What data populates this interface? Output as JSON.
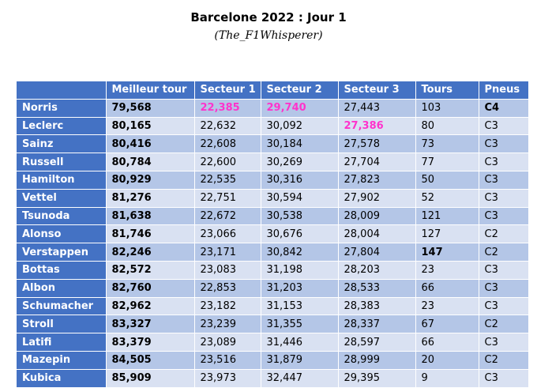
{
  "title": "Barcelone 2022 : Jour 1",
  "subtitle": "(The_F1Whisperer)",
  "headers": [
    "",
    "Meilleur tour",
    "Secteur 1",
    "Secteur 2",
    "Secteur 3",
    "Tours",
    "Pneus"
  ],
  "colors": {
    "header_blue": "#4472c4",
    "row_light": "#d9e1f2",
    "row_mid": "#b4c6e7",
    "highlight_pink": "#ff33cc"
  },
  "rows": [
    {
      "driver": "Norris",
      "best": "79,568",
      "s1": "22,385",
      "s2": "29,740",
      "s3": "27,443",
      "laps": "103",
      "tyre": "C4"
    },
    {
      "driver": "Leclerc",
      "best": "80,165",
      "s1": "22,632",
      "s2": "30,092",
      "s3": "27,386",
      "laps": "80",
      "tyre": "C3"
    },
    {
      "driver": "Sainz",
      "best": "80,416",
      "s1": "22,608",
      "s2": "30,184",
      "s3": "27,578",
      "laps": "73",
      "tyre": "C3"
    },
    {
      "driver": "Russell",
      "best": "80,784",
      "s1": "22,600",
      "s2": "30,269",
      "s3": "27,704",
      "laps": "77",
      "tyre": "C3"
    },
    {
      "driver": "Hamilton",
      "best": "80,929",
      "s1": "22,535",
      "s2": "30,316",
      "s3": "27,823",
      "laps": "50",
      "tyre": "C3"
    },
    {
      "driver": "Vettel",
      "best": "81,276",
      "s1": "22,751",
      "s2": "30,594",
      "s3": "27,902",
      "laps": "52",
      "tyre": "C3"
    },
    {
      "driver": "Tsunoda",
      "best": "81,638",
      "s1": "22,672",
      "s2": "30,538",
      "s3": "28,009",
      "laps": "121",
      "tyre": "C3"
    },
    {
      "driver": "Alonso",
      "best": "81,746",
      "s1": "23,066",
      "s2": "30,676",
      "s3": "28,004",
      "laps": "127",
      "tyre": "C2"
    },
    {
      "driver": "Verstappen",
      "best": "82,246",
      "s1": "23,171",
      "s2": "30,842",
      "s3": "27,804",
      "laps": "147",
      "tyre": "C2"
    },
    {
      "driver": "Bottas",
      "best": "82,572",
      "s1": "23,083",
      "s2": "31,198",
      "s3": "28,203",
      "laps": "23",
      "tyre": "C3"
    },
    {
      "driver": "Albon",
      "best": "82,760",
      "s1": "22,853",
      "s2": "31,203",
      "s3": "28,533",
      "laps": "66",
      "tyre": "C3"
    },
    {
      "driver": "Schumacher",
      "best": "82,962",
      "s1": "23,182",
      "s2": "31,153",
      "s3": "28,383",
      "laps": "23",
      "tyre": "C3"
    },
    {
      "driver": "Stroll",
      "best": "83,327",
      "s1": "23,239",
      "s2": "31,355",
      "s3": "28,337",
      "laps": "67",
      "tyre": "C2"
    },
    {
      "driver": "Latifi",
      "best": "83,379",
      "s1": "23,089",
      "s2": "31,446",
      "s3": "28,597",
      "laps": "66",
      "tyre": "C3"
    },
    {
      "driver": "Mazepin",
      "best": "84,505",
      "s1": "23,516",
      "s2": "31,879",
      "s3": "28,999",
      "laps": "20",
      "tyre": "C2"
    },
    {
      "driver": "Kubica",
      "best": "85,909",
      "s1": "23,973",
      "s2": "32,447",
      "s3": "29,395",
      "laps": "9",
      "tyre": "C3"
    }
  ]
}
